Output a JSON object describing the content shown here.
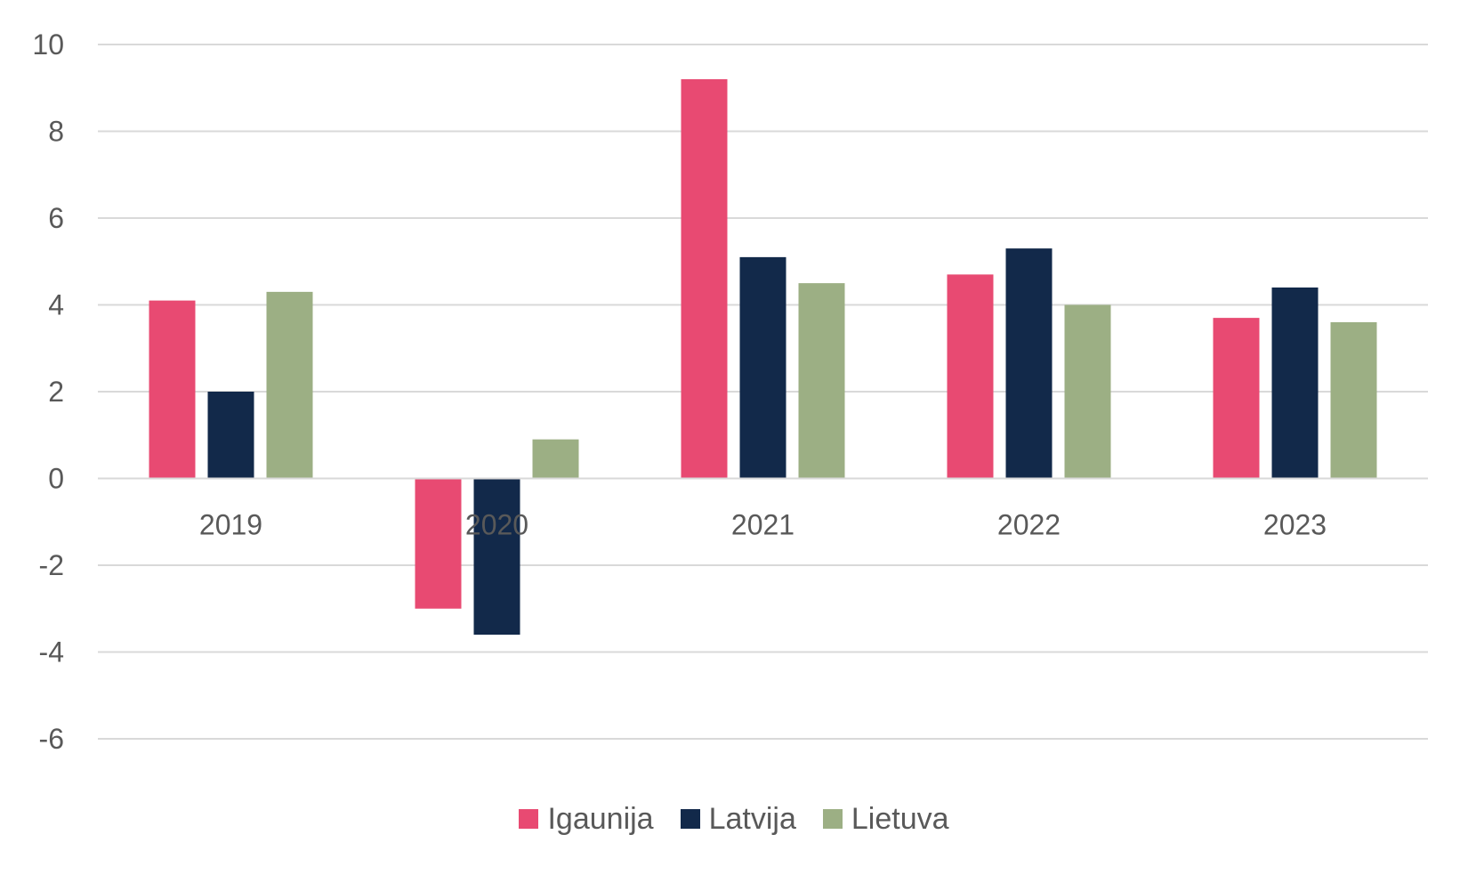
{
  "chart_data": {
    "type": "bar",
    "categories": [
      "2019",
      "2020",
      "2021",
      "2022",
      "2023"
    ],
    "series": [
      {
        "name": "Igaunija",
        "color": "#e84a72",
        "values": [
          4.1,
          -3.0,
          9.2,
          4.7,
          3.7
        ]
      },
      {
        "name": "Latvija",
        "color": "#12294a",
        "values": [
          2.0,
          -3.6,
          5.1,
          5.3,
          4.4
        ]
      },
      {
        "name": "Lietuva",
        "color": "#9caf84",
        "values": [
          4.3,
          0.9,
          4.5,
          4.0,
          3.6
        ]
      }
    ],
    "yticks": [
      "10",
      "8",
      "6",
      "4",
      "2",
      "0",
      "-2",
      "-4",
      "-6"
    ],
    "ylim": [
      -6,
      10
    ],
    "grid": true,
    "legend_position": "bottom"
  }
}
